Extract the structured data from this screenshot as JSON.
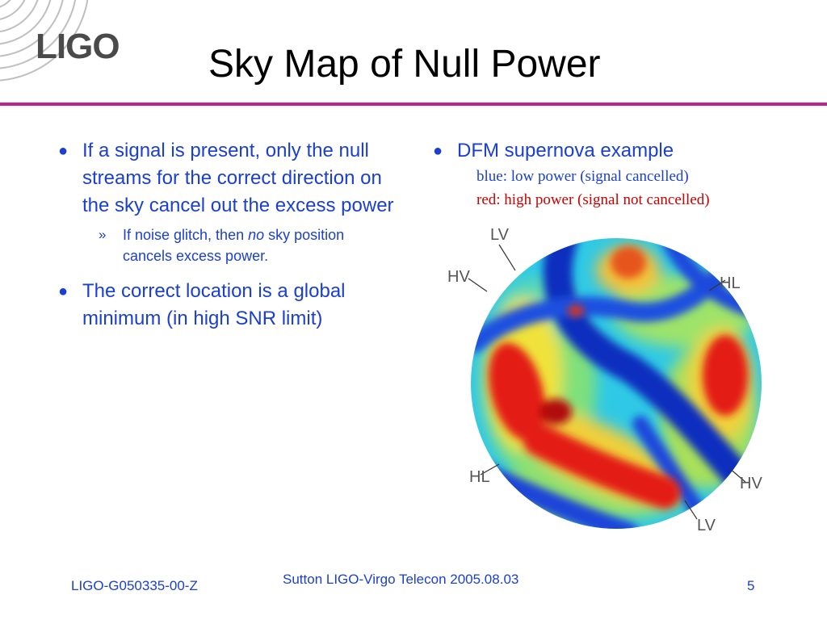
{
  "header": {
    "logo_text": "LIGO",
    "title": "Sky Map of Null Power",
    "rule_color": "#c0218c"
  },
  "left_column": {
    "bullets": [
      {
        "text": "If a signal is present, only the null streams for the correct direction on the sky cancel out the excess power"
      },
      {
        "text": "The correct location is a global minimum (in high SNR limit)"
      }
    ],
    "sub_bullet": {
      "marker": "»",
      "text_before": "If noise glitch, then ",
      "emphasis": "no",
      "text_after": " sky position cancels excess power."
    }
  },
  "right_column": {
    "bullet": "DFM supernova example",
    "legend_blue": "blue: low power (signal cancelled)",
    "legend_red": "red: high power (signal not cancelled)"
  },
  "sky_map": {
    "labels": {
      "top_left": "LV",
      "upper_left": "HV",
      "upper_right": "HL",
      "lower_left": "HL",
      "lower_right": "HV",
      "bottom": "LV"
    }
  },
  "footer": {
    "doc_id": "LIGO-G050335-00-Z",
    "center_text": "Sutton LIGO-Virgo Telecon 2005.08.03",
    "page_number": "5"
  },
  "colors": {
    "text_blue": "#1a3fd1",
    "legend_blue": "#1a3fd1",
    "legend_red": "#cc0000",
    "logo_gray": "#4a4a4a",
    "map_low": "#0a2fbf",
    "map_high": "#e31a12"
  },
  "bullet_glyph": "●"
}
